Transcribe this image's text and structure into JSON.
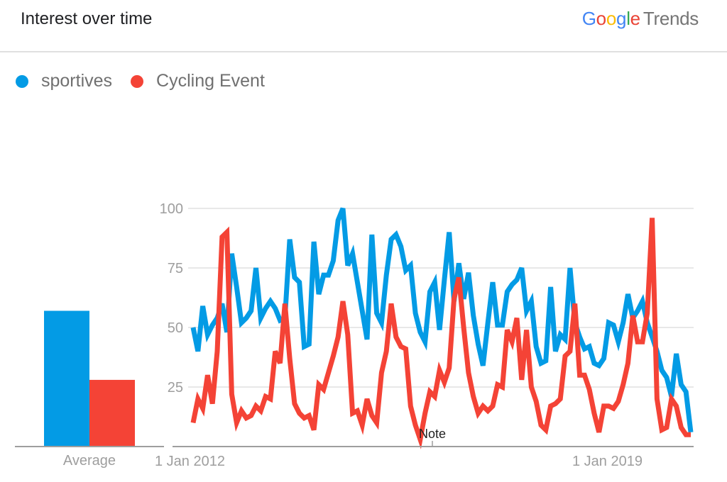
{
  "header": {
    "title": "Interest over time",
    "brand_google": [
      "G",
      "o",
      "o",
      "g",
      "l",
      "e"
    ],
    "brand_trends": "Trends"
  },
  "legend": [
    {
      "label": "sportives",
      "color": "#039be5"
    },
    {
      "label": "Cycling Event",
      "color": "#f44336"
    }
  ],
  "average": {
    "label": "Average",
    "sportives": 57,
    "cycling_event": 28
  },
  "note_label": "Note",
  "chart_data": {
    "type": "line",
    "title": "Interest over time",
    "xlabel": "",
    "ylabel": "",
    "ylim": [
      0,
      100
    ],
    "yticks": [
      25,
      50,
      75,
      100
    ],
    "xtick_labels": [
      "1 Jan 2012",
      "1 Jan 2019"
    ],
    "grid": true,
    "legend_position": "top-left",
    "annotations": [
      {
        "label": "Note",
        "x_index": 66
      }
    ],
    "average_bars": {
      "categories": [
        "sportives",
        "Cycling Event"
      ],
      "values": [
        57,
        28
      ],
      "label": "Average"
    },
    "series": [
      {
        "name": "sportives",
        "color": "#039be5",
        "values": [
          50,
          40,
          59,
          47,
          51,
          54,
          60,
          48,
          81,
          67,
          52,
          54,
          57,
          75,
          54,
          58,
          61,
          58,
          53,
          54,
          87,
          71,
          69,
          42,
          43,
          86,
          64,
          72,
          72,
          78,
          95,
          100,
          76,
          81,
          69,
          57,
          45,
          89,
          56,
          52,
          72,
          87,
          89,
          84,
          74,
          76,
          56,
          48,
          44,
          65,
          69,
          49,
          70,
          90,
          61,
          77,
          62,
          73,
          55,
          43,
          34,
          52,
          69,
          51,
          51,
          65,
          68,
          70,
          75,
          57,
          61,
          42,
          35,
          36,
          67,
          40,
          47,
          45,
          75,
          52,
          46,
          41,
          42,
          35,
          34,
          37,
          52,
          51,
          44,
          52,
          64,
          54,
          57,
          61,
          52,
          46,
          40,
          32,
          29,
          21,
          39,
          26,
          23,
          6
        ]
      },
      {
        "name": "Cycling Event",
        "color": "#f44336",
        "values": [
          10,
          20,
          16,
          30,
          18,
          40,
          88,
          90,
          22,
          10,
          15,
          12,
          13,
          17,
          15,
          21,
          20,
          40,
          35,
          60,
          37,
          18,
          14,
          12,
          13,
          7,
          26,
          24,
          31,
          38,
          46,
          61,
          47,
          14,
          15,
          9,
          20,
          13,
          10,
          31,
          40,
          60,
          46,
          42,
          41,
          17,
          9,
          3,
          14,
          23,
          21,
          32,
          27,
          33,
          62,
          71,
          50,
          31,
          21,
          14,
          17,
          15,
          17,
          26,
          25,
          49,
          44,
          54,
          28,
          49,
          25,
          19,
          9,
          7,
          17,
          18,
          20,
          38,
          40,
          60,
          30,
          30,
          24,
          14,
          6,
          17,
          17,
          16,
          19,
          26,
          35,
          55,
          44,
          44,
          56,
          96,
          20,
          7,
          8,
          20,
          17,
          8,
          5,
          5
        ]
      }
    ]
  }
}
